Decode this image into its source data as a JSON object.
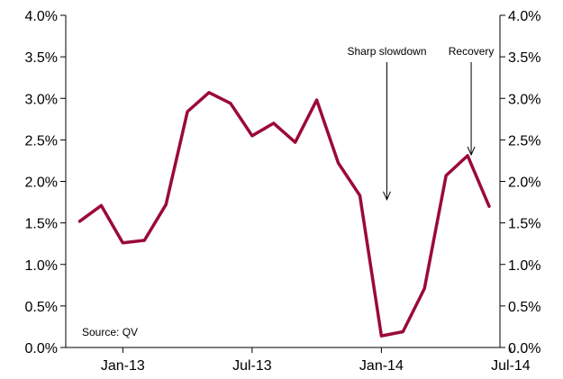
{
  "chart_data": {
    "type": "line",
    "title": "",
    "xlabel": "",
    "ylabel": "",
    "ylim": [
      0,
      4.0
    ],
    "y_ticks": [
      "0.0%",
      "0.5%",
      "1.0%",
      "1.5%",
      "2.0%",
      "2.5%",
      "3.0%",
      "3.5%",
      "4.0%"
    ],
    "x_ticks": [
      {
        "label": "Jan-13",
        "month": "2013-01"
      },
      {
        "label": "Jul-13",
        "month": "2013-07"
      },
      {
        "label": "Jan-14",
        "month": "2014-01"
      },
      {
        "label": "Jul-14",
        "month": "2014-07"
      }
    ],
    "grid": false,
    "dual_y_axis": true,
    "series": [
      {
        "color": "#9b0a37",
        "points": [
          {
            "month": "2012-11",
            "value": 1.52
          },
          {
            "month": "2012-12",
            "value": 1.71
          },
          {
            "month": "2013-01",
            "value": 1.26
          },
          {
            "month": "2013-02",
            "value": 1.29
          },
          {
            "month": "2013-03",
            "value": 1.72
          },
          {
            "month": "2013-04",
            "value": 2.84
          },
          {
            "month": "2013-05",
            "value": 3.07
          },
          {
            "month": "2013-06",
            "value": 2.94
          },
          {
            "month": "2013-07",
            "value": 2.55
          },
          {
            "month": "2013-08",
            "value": 2.7
          },
          {
            "month": "2013-09",
            "value": 2.47
          },
          {
            "month": "2013-10",
            "value": 2.98
          },
          {
            "month": "2013-11",
            "value": 2.22
          },
          {
            "month": "2013-12",
            "value": 1.83
          },
          {
            "month": "2014-01",
            "value": 0.14
          },
          {
            "month": "2014-02",
            "value": 0.19
          },
          {
            "month": "2014-03",
            "value": 0.71
          },
          {
            "month": "2014-04",
            "value": 2.07
          },
          {
            "month": "2014-05",
            "value": 2.31
          },
          {
            "month": "2014-06",
            "value": 1.7
          }
        ]
      }
    ],
    "annotations": [
      {
        "text": "Sharp slowdown",
        "month": "2013-12",
        "arrow_to_value": 1.78
      },
      {
        "text": "Recovery",
        "month": "2014-05",
        "arrow_to_value": 2.32
      }
    ],
    "source": "Source: QV"
  }
}
